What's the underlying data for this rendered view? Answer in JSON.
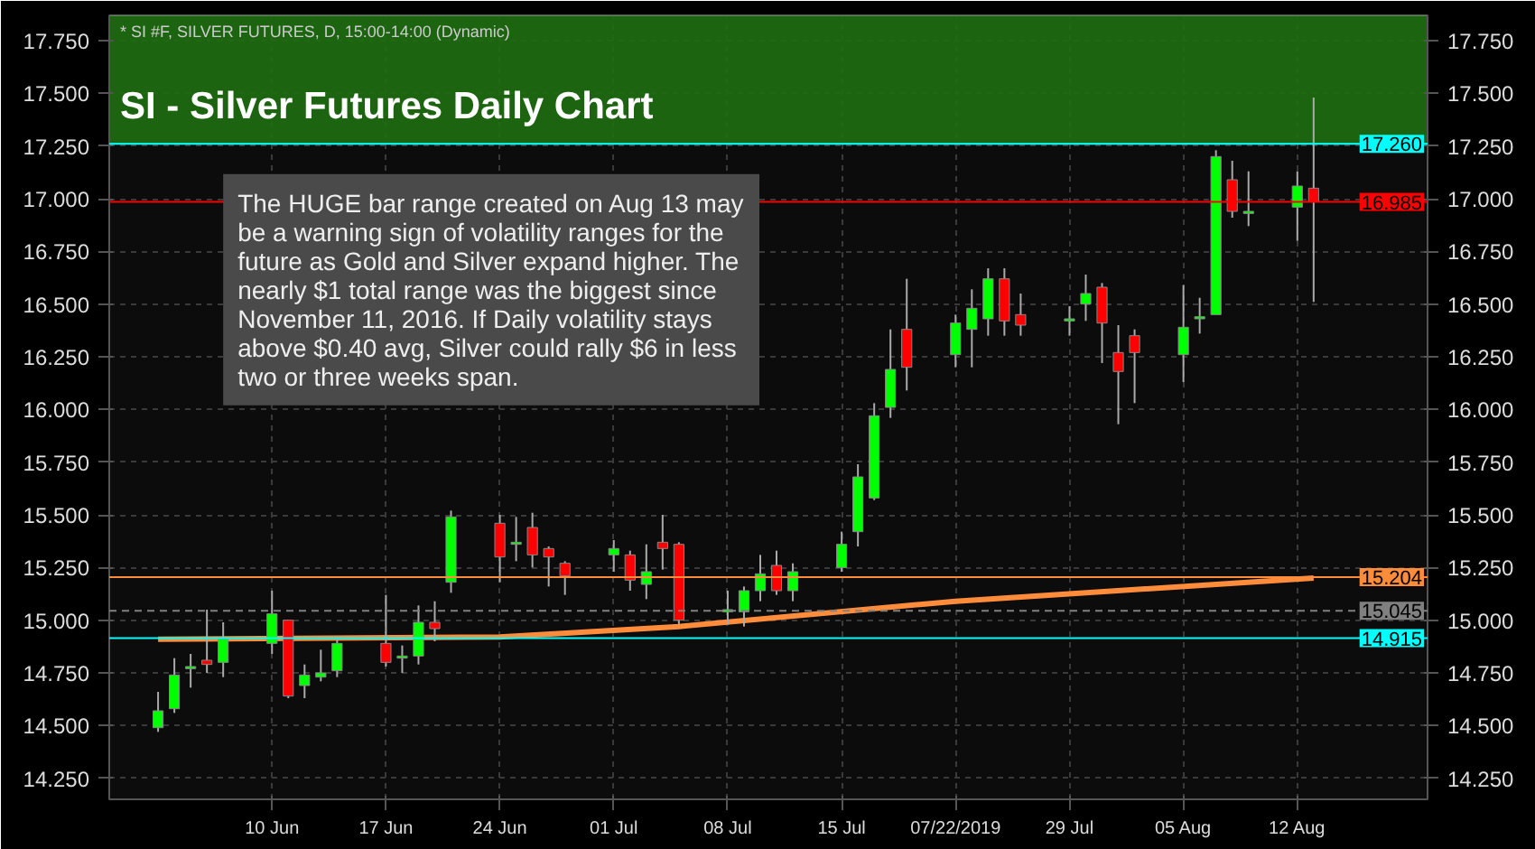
{
  "chart_data": {
    "type": "candlestick",
    "title": "SI - Silver Futures Daily Chart",
    "subtitle": "* SI #F, SILVER FUTURES, D, 15:00-14:00 (Dynamic)",
    "annotations": [
      "The HUGE bar range created on Aug 13 may\nbe a warning sign of volatility ranges for the\nfuture as Gold and Silver expand higher. The\nnearly $1 total range was the biggest since\nNovember 11, 2016.  If Daily volatility stays\nabove $0.40 avg, Silver could rally $6 in less\ntwo or three weeks span."
    ],
    "x": [
      "2019-06-03",
      "2019-06-04",
      "2019-06-05",
      "2019-06-06",
      "2019-06-07",
      "2019-06-10",
      "2019-06-11",
      "2019-06-12",
      "2019-06-13",
      "2019-06-14",
      "2019-06-17",
      "2019-06-18",
      "2019-06-19",
      "2019-06-20",
      "2019-06-21",
      "2019-06-24",
      "2019-06-25",
      "2019-06-26",
      "2019-06-27",
      "2019-06-28",
      "2019-07-01",
      "2019-07-02",
      "2019-07-03",
      "2019-07-04",
      "2019-07-05",
      "2019-07-08",
      "2019-07-09",
      "2019-07-10",
      "2019-07-11",
      "2019-07-12",
      "2019-07-15",
      "2019-07-16",
      "2019-07-17",
      "2019-07-18",
      "2019-07-19",
      "2019-07-22",
      "2019-07-23",
      "2019-07-24",
      "2019-07-25",
      "2019-07-26",
      "2019-07-29",
      "2019-07-30",
      "2019-07-31",
      "2019-08-01",
      "2019-08-02",
      "2019-08-05",
      "2019-08-06",
      "2019-08-07",
      "2019-08-08",
      "2019-08-09",
      "2019-08-12",
      "2019-08-13"
    ],
    "ohlc": [
      [
        14.49,
        14.66,
        14.47,
        14.57
      ],
      [
        14.58,
        14.82,
        14.56,
        14.74
      ],
      [
        14.77,
        14.84,
        14.68,
        14.78
      ],
      [
        14.81,
        15.05,
        14.75,
        14.79
      ],
      [
        14.8,
        14.99,
        14.73,
        14.91
      ],
      [
        14.89,
        15.14,
        14.84,
        15.03
      ],
      [
        15.0,
        15.0,
        14.63,
        14.64
      ],
      [
        14.69,
        14.79,
        14.63,
        14.74
      ],
      [
        14.73,
        14.86,
        14.71,
        14.75
      ],
      [
        14.76,
        14.92,
        14.73,
        14.89
      ],
      [
        14.89,
        15.12,
        14.78,
        14.8
      ],
      [
        14.82,
        14.88,
        14.75,
        14.83
      ],
      [
        14.83,
        15.07,
        14.79,
        14.99
      ],
      [
        14.99,
        15.09,
        14.9,
        14.96
      ],
      [
        15.18,
        15.52,
        15.13,
        15.49
      ],
      [
        15.46,
        15.5,
        15.18,
        15.3
      ],
      [
        15.36,
        15.49,
        15.28,
        15.37
      ],
      [
        15.44,
        15.51,
        15.25,
        15.31
      ],
      [
        15.34,
        15.35,
        15.16,
        15.3
      ],
      [
        15.27,
        15.28,
        15.12,
        15.21
      ],
      [
        15.31,
        15.38,
        15.23,
        15.34
      ],
      [
        15.31,
        15.33,
        15.14,
        15.19
      ],
      [
        15.17,
        15.36,
        15.1,
        15.23
      ],
      [
        15.37,
        15.5,
        15.24,
        15.34
      ],
      [
        15.36,
        15.37,
        14.98,
        15.0
      ],
      [
        15.04,
        15.14,
        14.98,
        15.05
      ],
      [
        15.04,
        15.16,
        14.97,
        15.14
      ],
      [
        15.14,
        15.31,
        15.09,
        15.22
      ],
      [
        15.26,
        15.33,
        15.12,
        15.14
      ],
      [
        15.14,
        15.27,
        15.09,
        15.23
      ],
      [
        15.25,
        15.42,
        15.23,
        15.36
      ],
      [
        15.42,
        15.74,
        15.35,
        15.68
      ],
      [
        15.58,
        16.03,
        15.57,
        15.97
      ],
      [
        16.01,
        16.38,
        15.96,
        16.19
      ],
      [
        16.38,
        16.62,
        16.09,
        16.2
      ],
      [
        16.26,
        16.45,
        16.2,
        16.41
      ],
      [
        16.38,
        16.57,
        16.2,
        16.48
      ],
      [
        16.43,
        16.67,
        16.35,
        16.62
      ],
      [
        16.62,
        16.67,
        16.35,
        16.42
      ],
      [
        16.45,
        16.55,
        16.35,
        16.4
      ],
      [
        16.42,
        16.49,
        16.35,
        16.43
      ],
      [
        16.5,
        16.64,
        16.42,
        16.55
      ],
      [
        16.58,
        16.6,
        16.22,
        16.41
      ],
      [
        16.27,
        16.4,
        15.93,
        16.18
      ],
      [
        16.35,
        16.38,
        16.03,
        16.27
      ],
      [
        16.26,
        16.59,
        16.13,
        16.39
      ],
      [
        16.43,
        16.53,
        16.36,
        16.44
      ],
      [
        16.45,
        17.23,
        16.45,
        17.2
      ],
      [
        17.09,
        17.18,
        16.91,
        16.94
      ],
      [
        16.93,
        17.13,
        16.87,
        16.94
      ],
      [
        16.96,
        17.13,
        16.8,
        17.06
      ],
      [
        17.05,
        17.48,
        16.51,
        16.985
      ]
    ],
    "colors": [
      "#00ff00",
      "#00ff00",
      "#00ff00",
      "#ff0000",
      "#00ff00",
      "#00ff00",
      "#ff0000",
      "#00ff00",
      "#00ff00",
      "#00ff00",
      "#ff0000",
      "#00ff00",
      "#00ff00",
      "#ff0000",
      "#00ff00",
      "#ff0000",
      "#00ff00",
      "#ff0000",
      "#ff0000",
      "#ff0000",
      "#00ff00",
      "#ff0000",
      "#00ff00",
      "#ff0000",
      "#ff0000",
      "#00ff00",
      "#00ff00",
      "#00ff00",
      "#ff0000",
      "#00ff00",
      "#00ff00",
      "#00ff00",
      "#00ff00",
      "#00ff00",
      "#ff0000",
      "#00ff00",
      "#00ff00",
      "#00ff00",
      "#ff0000",
      "#ff0000",
      "#00ff00",
      "#00ff00",
      "#ff0000",
      "#ff0000",
      "#ff0000",
      "#00ff00",
      "#00ff00",
      "#00ff00",
      "#ff0000",
      "#00ff00",
      "#00ff00",
      "#ff0000"
    ],
    "series": [
      {
        "type": "line",
        "color": "#ff8c3a",
        "x": [
          "2019-06-03",
          "2019-06-24",
          "2019-07-05",
          "2019-07-22",
          "2019-08-13"
        ],
        "values": [
          14.91,
          14.92,
          14.97,
          15.09,
          15.2
        ]
      }
    ],
    "ref_lines": [
      {
        "axis": "y",
        "value": 17.26,
        "label": "17.260",
        "color": "#00ffff"
      },
      {
        "axis": "y",
        "value": 16.985,
        "label": "16.985",
        "color": "#ff0000"
      },
      {
        "axis": "y",
        "value": 15.204,
        "label": "15.204",
        "color": "#ff8c3a"
      },
      {
        "axis": "y",
        "value": 15.045,
        "label": "15.045",
        "color": "#808080",
        "line_style": "dashed"
      },
      {
        "axis": "y",
        "value": 14.915,
        "label": "14.915",
        "color": "#00ffff"
      }
    ],
    "bands": [
      {
        "axis": "y",
        "from": 17.26,
        "to": 17.87,
        "color": "#1f6e12"
      }
    ],
    "xlim": [
      "2019-05-31",
      "2019-08-20"
    ],
    "xticks": [
      {
        "value": "2019-06-10",
        "label": "10 Jun"
      },
      {
        "value": "2019-06-17",
        "label": "17 Jun"
      },
      {
        "value": "2019-06-24",
        "label": "24 Jun"
      },
      {
        "value": "2019-07-01",
        "label": "01 Jul"
      },
      {
        "value": "2019-07-08",
        "label": "08 Jul"
      },
      {
        "value": "2019-07-15",
        "label": "15 Jul"
      },
      {
        "value": "2019-07-22",
        "label": "07/22/2019"
      },
      {
        "value": "2019-07-29",
        "label": "29 Jul"
      },
      {
        "value": "2019-08-05",
        "label": "05 Aug"
      },
      {
        "value": "2019-08-12",
        "label": "12 Aug"
      }
    ],
    "ylim": [
      14.15,
      17.87
    ],
    "yticks": [
      {
        "value": 14.25,
        "label": "14.250"
      },
      {
        "value": 14.5,
        "label": "14.500"
      },
      {
        "value": 14.75,
        "label": "14.750"
      },
      {
        "value": 15.0,
        "label": "15.000"
      },
      {
        "value": 15.25,
        "label": "15.250"
      },
      {
        "value": 15.5,
        "label": "15.500"
      },
      {
        "value": 15.75,
        "label": "15.750"
      },
      {
        "value": 16.0,
        "label": "16.000"
      },
      {
        "value": 16.25,
        "label": "16.250"
      },
      {
        "value": 16.5,
        "label": "16.500"
      },
      {
        "value": 16.75,
        "label": "16.750"
      },
      {
        "value": 17.0,
        "label": "17.000"
      },
      {
        "value": 17.25,
        "label": "17.250"
      },
      {
        "value": 17.5,
        "label": "17.500"
      },
      {
        "value": 17.75,
        "label": "17.750"
      }
    ],
    "y2lim": [
      14.15,
      17.87
    ],
    "y2ticks": [
      {
        "value": 14.25,
        "label": "14.250"
      },
      {
        "value": 14.5,
        "label": "14.500"
      },
      {
        "value": 14.75,
        "label": "14.750"
      },
      {
        "value": 15.0,
        "label": "15.000"
      },
      {
        "value": 15.25,
        "label": "15.250"
      },
      {
        "value": 15.5,
        "label": "15.500"
      },
      {
        "value": 15.75,
        "label": "15.750"
      },
      {
        "value": 16.0,
        "label": "16.000"
      },
      {
        "value": 16.25,
        "label": "16.250"
      },
      {
        "value": 16.5,
        "label": "16.500"
      },
      {
        "value": 16.75,
        "label": "16.750"
      },
      {
        "value": 17.0,
        "label": "17.000"
      },
      {
        "value": 17.25,
        "label": "17.250"
      },
      {
        "value": 17.5,
        "label": "17.500"
      },
      {
        "value": 17.75,
        "label": "17.750"
      }
    ],
    "grid": true
  }
}
